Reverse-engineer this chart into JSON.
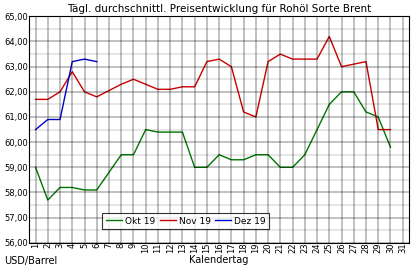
{
  "title": "Tägl. durchschnittl. Preisentwicklung für Rohöl Sorte Brent",
  "xlabel": "Kalendertag",
  "ylabel": "USD/Barrel",
  "ylim": [
    56.0,
    65.0
  ],
  "yticks": [
    56.0,
    57.0,
    58.0,
    59.0,
    60.0,
    61.0,
    62.0,
    63.0,
    64.0,
    65.0
  ],
  "xlim": [
    0.5,
    31.5
  ],
  "xticks": [
    1,
    2,
    3,
    4,
    5,
    6,
    7,
    8,
    9,
    10,
    11,
    12,
    13,
    14,
    15,
    16,
    17,
    18,
    19,
    20,
    21,
    22,
    23,
    24,
    25,
    26,
    27,
    28,
    29,
    30,
    31
  ],
  "okt19_x": [
    1,
    2,
    3,
    4,
    5,
    6,
    8,
    9,
    10,
    11,
    12,
    13,
    14,
    15,
    16,
    17,
    18,
    19,
    20,
    21,
    22,
    23,
    24,
    25,
    26,
    27,
    28,
    29,
    30
  ],
  "okt19_y": [
    59.0,
    57.7,
    58.2,
    58.2,
    58.1,
    58.1,
    59.5,
    59.5,
    60.5,
    60.4,
    60.4,
    60.4,
    59.0,
    59.0,
    59.5,
    59.3,
    59.3,
    59.5,
    59.5,
    59.0,
    59.0,
    59.5,
    60.5,
    61.5,
    62.0,
    62.0,
    61.2,
    61.0,
    59.8
  ],
  "nov19_x": [
    1,
    2,
    3,
    4,
    5,
    6,
    8,
    9,
    10,
    11,
    12,
    13,
    14,
    15,
    16,
    17,
    18,
    19,
    20,
    21,
    22,
    23,
    24,
    25,
    26,
    28,
    29,
    30
  ],
  "nov19_y": [
    61.7,
    61.7,
    62.0,
    62.8,
    62.0,
    61.8,
    62.3,
    62.5,
    62.3,
    62.1,
    62.1,
    62.2,
    62.2,
    63.2,
    63.3,
    63.0,
    61.2,
    61.0,
    63.2,
    63.5,
    63.3,
    63.3,
    63.3,
    64.2,
    63.0,
    63.2,
    60.5,
    60.5
  ],
  "dez19_x": [
    1,
    2,
    3,
    4,
    5,
    6
  ],
  "dez19_y": [
    60.5,
    60.9,
    60.9,
    63.2,
    63.3,
    63.2
  ],
  "okt19_color": "#007700",
  "nov19_color": "#cc0000",
  "dez19_color": "#0000cc",
  "background_color": "#ffffff",
  "grid_color": "#000000",
  "title_fontsize": 7.5,
  "axis_fontsize": 7,
  "tick_fontsize": 6,
  "legend_fontsize": 6.5
}
